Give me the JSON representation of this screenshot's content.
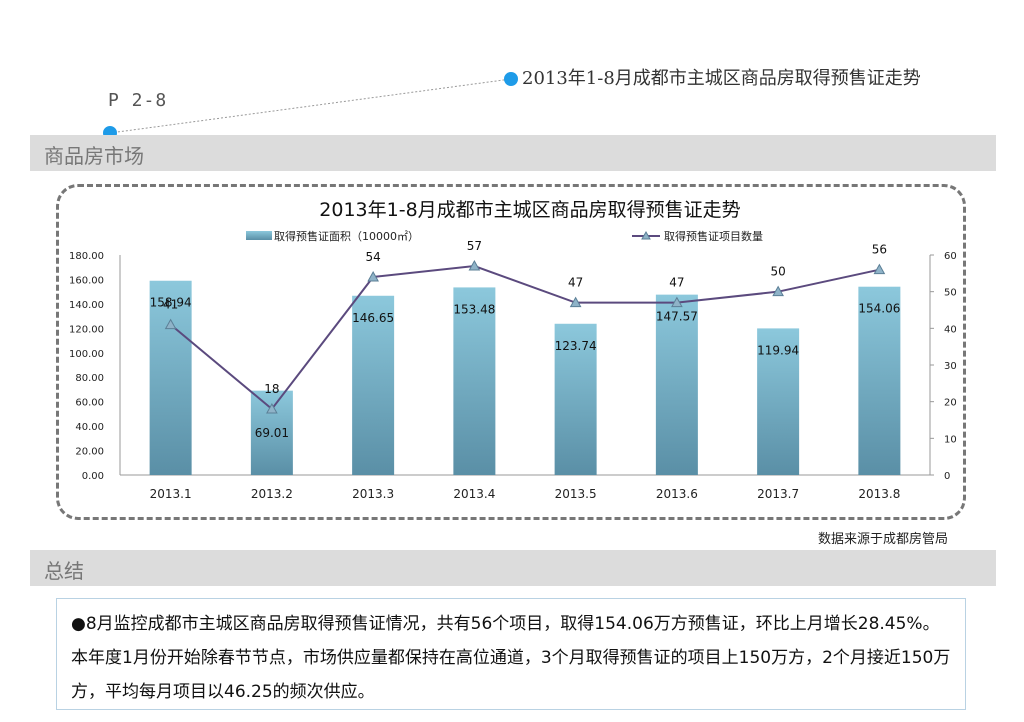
{
  "header": {
    "title": "2013年1-8月成都市主城区商品房取得预售证走势",
    "page_number": "P 2-8"
  },
  "sections": {
    "market_label": "商品房市场",
    "summary_label": "总结"
  },
  "source_note": "数据来源于成都房管局",
  "summary_text": "●8月监控成都市主城区商品房取得预售证情况，共有56个项目，取得154.06万方预售证，环比上月增长28.45%。本年度1月份开始除春节节点，市场供应量都保持在高位通道，3个月取得预售证的项目上150万方，2个月接近150万方，平均每月项目以46.25的频次供应。",
  "colors": {
    "bar": "#6fb3cc",
    "line": "#5b4a7e",
    "accent_dot": "#1e9be8"
  },
  "chart_data": {
    "type": "bar",
    "title": "2013年1-8月成都市主城区商品房取得预售证走势",
    "categories": [
      "2013.1",
      "2013.2",
      "2013.3",
      "2013.4",
      "2013.5",
      "2013.6",
      "2013.7",
      "2013.8"
    ],
    "series": [
      {
        "name": "取得预售证面积（10000㎡）",
        "type": "bar",
        "axis": "left",
        "values": [
          158.94,
          69.01,
          146.65,
          153.48,
          123.74,
          147.57,
          119.94,
          154.06
        ],
        "value_labels": [
          "158.94",
          "69.01",
          "146.65",
          "153.48",
          "123.74",
          "147.57",
          "119.94",
          "154.06"
        ]
      },
      {
        "name": "取得预售证项目数量",
        "type": "line",
        "axis": "right",
        "values": [
          41,
          18,
          54,
          57,
          47,
          47,
          50,
          56
        ],
        "value_labels": [
          "41",
          "18",
          "54",
          "57",
          "47",
          "47",
          "50",
          "56"
        ]
      }
    ],
    "y_left": {
      "min": 0,
      "max": 180,
      "ticks": [
        "0.00",
        "20.00",
        "40.00",
        "60.00",
        "80.00",
        "100.00",
        "120.00",
        "140.00",
        "160.00",
        "180.00"
      ]
    },
    "y_right": {
      "min": 0,
      "max": 60,
      "ticks": [
        "0",
        "10",
        "20",
        "30",
        "40",
        "50",
        "60"
      ]
    },
    "legend_position": "top-center",
    "grid": false
  }
}
